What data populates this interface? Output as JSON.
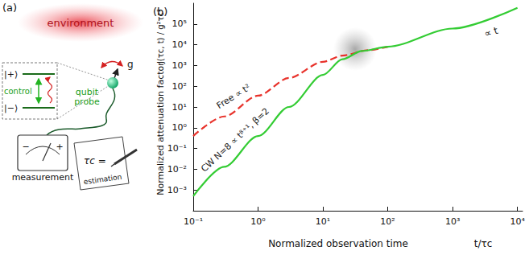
{
  "diagram": {
    "label": "(a)",
    "environment": "environment",
    "coupling": "g",
    "probe": [
      "qubit",
      "probe"
    ],
    "levels": [
      "|+⟩",
      "|−⟩"
    ],
    "control": "control",
    "measurement": "measurement",
    "meter": [
      "−",
      "+"
    ],
    "estimate": "τc =",
    "estimation": "estimation"
  },
  "chart_data": {
    "type": "line",
    "title": "(b)",
    "x_label": "Normalized observation time",
    "x_label_formula": "t/τc",
    "y_label": "Normalized attenuation factor",
    "y_label_formula": "J(τc, t) / g²τc²",
    "log": true,
    "grid": false,
    "xlim": [
      0.1,
      12000
    ],
    "xticks": [
      {
        "value": 0.1,
        "label": "10⁻¹"
      },
      {
        "value": 1,
        "label": "10⁰"
      },
      {
        "value": 10,
        "label": "10¹"
      },
      {
        "value": 100,
        "label": "10²"
      },
      {
        "value": 1000,
        "label": "10³"
      },
      {
        "value": 10000,
        "label": "10⁴"
      }
    ],
    "ylim": [
      0.0001,
      1000000
    ],
    "yticks": [
      {
        "value": 0.001,
        "label": "10⁻³"
      },
      {
        "value": 0.01,
        "label": "10⁻²"
      },
      {
        "value": 0.1,
        "label": "10⁻¹"
      },
      {
        "value": 1,
        "label": "10⁰"
      },
      {
        "value": 10,
        "label": "10¹"
      },
      {
        "value": 100,
        "label": "10²"
      },
      {
        "value": 1000,
        "label": "10³"
      },
      {
        "value": 10000,
        "label": "10⁴"
      },
      {
        "value": 100000,
        "label": "10⁵"
      }
    ],
    "series": [
      {
        "name": "Free ∝ t²",
        "color": "#e8322b",
        "line_style": "dashed",
        "x": [
          0.1,
          0.3,
          1,
          3,
          10,
          20,
          50,
          100
        ],
        "values": [
          0.4,
          3.5,
          35,
          250,
          1500,
          3000,
          5500,
          8000
        ]
      },
      {
        "name": "CW N=8 ∝ tᵝ⁺¹, β=2",
        "color": "#33cc33",
        "line_style": "solid",
        "x": [
          0.1,
          0.3,
          1,
          3,
          10,
          20,
          40,
          100,
          1000,
          10000
        ],
        "values": [
          0.0005,
          0.013,
          0.4,
          10,
          350,
          2000,
          5000,
          8000,
          60000,
          600000
        ]
      }
    ],
    "annotations": [
      {
        "text": "∝ t"
      }
    ]
  }
}
